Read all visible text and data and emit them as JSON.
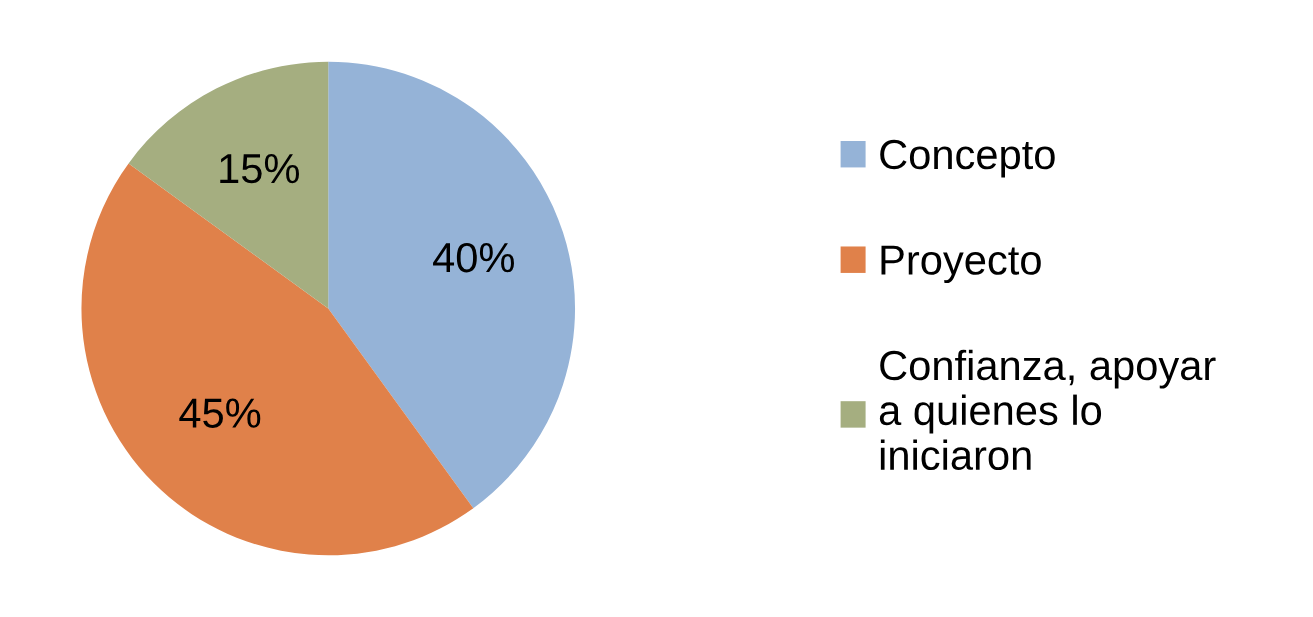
{
  "chart_data": {
    "type": "pie",
    "categories": [
      "Concepto",
      "Proyecto",
      "Confianza, apoyar\na quienes lo\niniciaron"
    ],
    "values": [
      40,
      45,
      15
    ],
    "colors": [
      "#95b3d7",
      "#e0814a",
      "#a5ae80"
    ],
    "value_labels": [
      "40%",
      "45%",
      "15%"
    ],
    "legend": "right"
  }
}
